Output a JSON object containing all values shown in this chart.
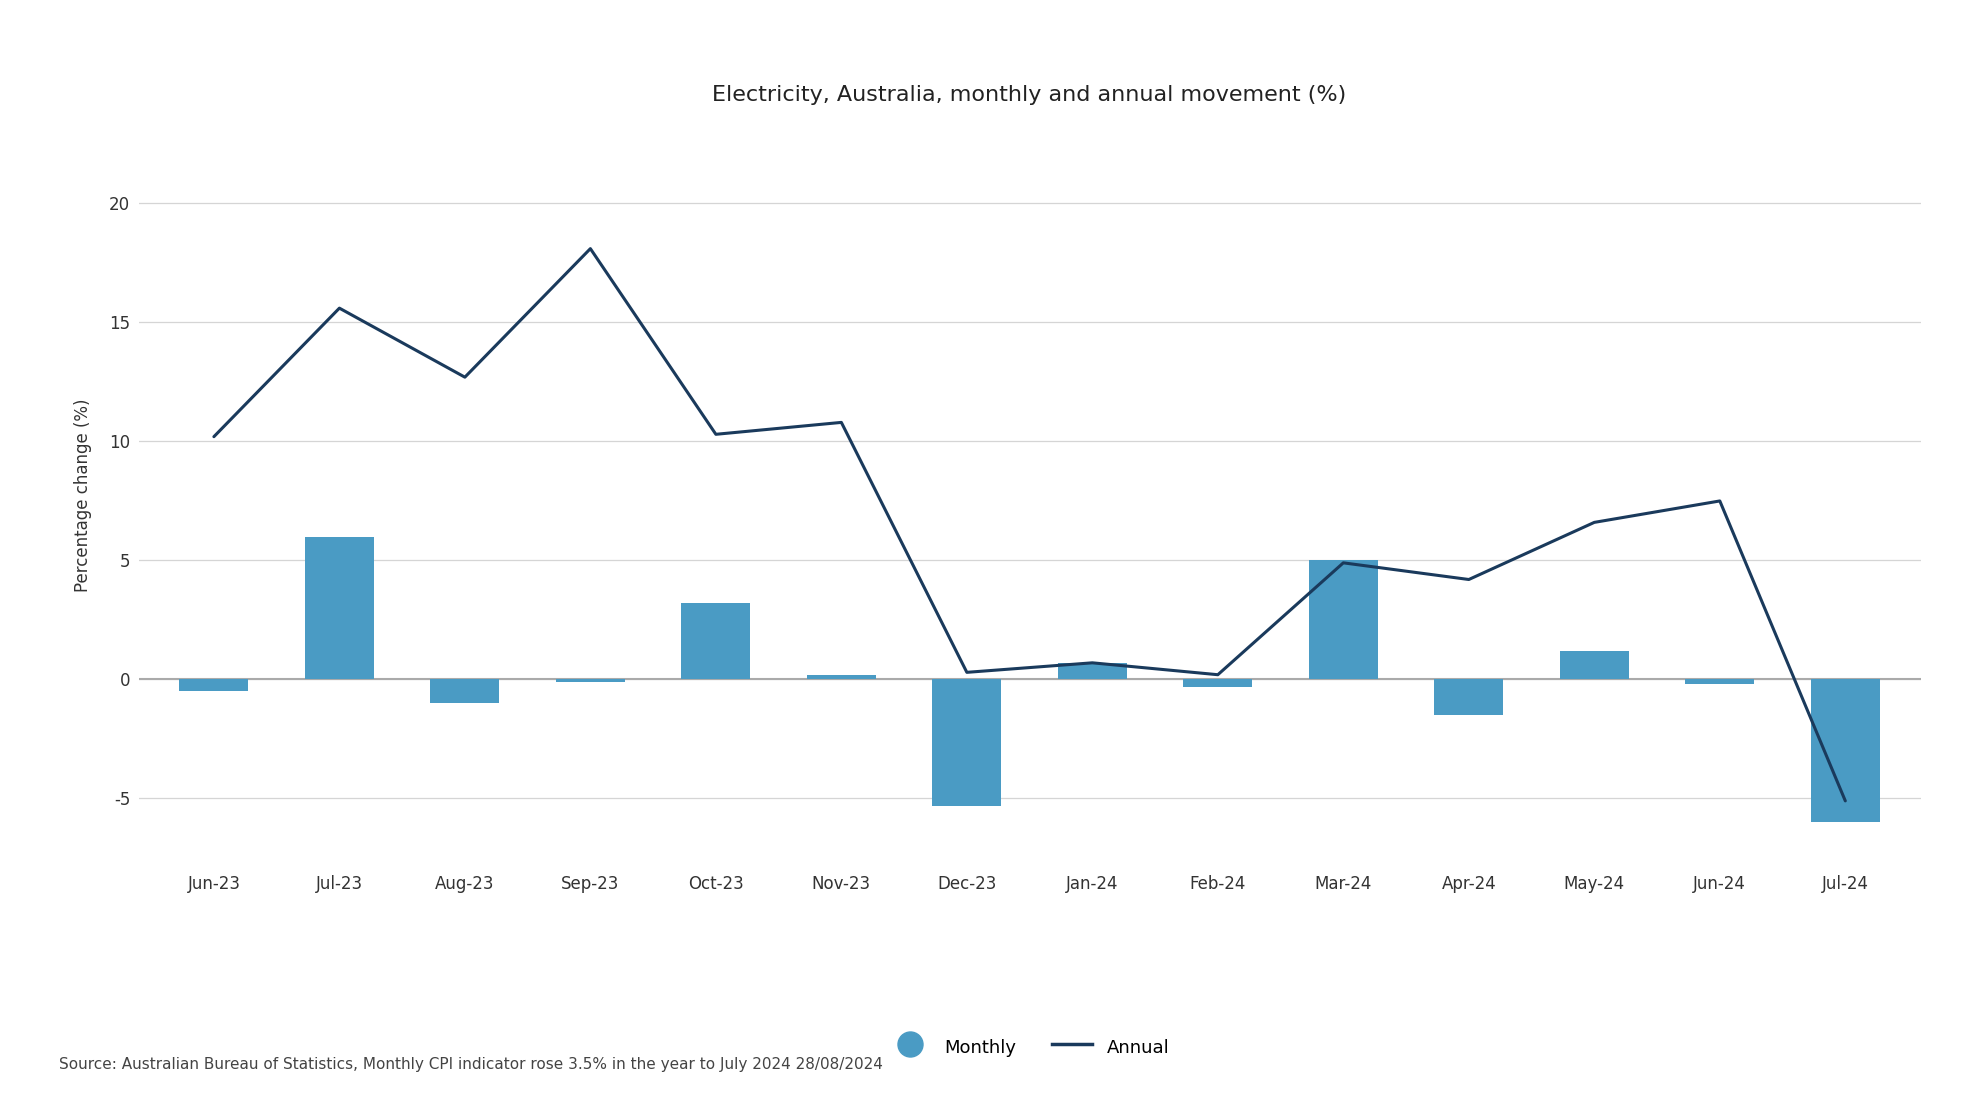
{
  "title": "Electricity, Australia, monthly and annual movement (%)",
  "categories": [
    "Jun-23",
    "Jul-23",
    "Aug-23",
    "Sep-23",
    "Oct-23",
    "Nov-23",
    "Dec-23",
    "Jan-24",
    "Feb-24",
    "Mar-24",
    "Apr-24",
    "May-24",
    "Jun-24",
    "Jul-24"
  ],
  "monthly_values": [
    -0.5,
    6.0,
    -1.0,
    -0.1,
    3.2,
    0.2,
    -5.3,
    0.7,
    -0.3,
    5.0,
    -1.5,
    1.2,
    -0.2,
    -6.0
  ],
  "annual_values": [
    10.2,
    15.6,
    12.7,
    18.1,
    10.3,
    10.8,
    0.3,
    0.7,
    0.2,
    4.9,
    4.2,
    6.6,
    7.5,
    -5.1
  ],
  "bar_color": "#4a9bc4",
  "line_color": "#1a3a5c",
  "ylabel": "Percentage change (%)",
  "ylim": [
    -7.5,
    23
  ],
  "yticks": [
    -5,
    0,
    5,
    10,
    15,
    20
  ],
  "source_text": "Source: Australian Bureau of Statistics, Monthly CPI indicator rose 3.5% in the year to July 2024 28/08/2024",
  "legend_monthly_label": "Monthly",
  "legend_annual_label": "Annual",
  "background_color": "#ffffff",
  "grid_color": "#d5d5d5",
  "zero_line_color": "#aaaaaa",
  "title_fontsize": 16,
  "axis_label_fontsize": 12,
  "tick_fontsize": 12,
  "source_fontsize": 11,
  "bar_width": 0.55
}
